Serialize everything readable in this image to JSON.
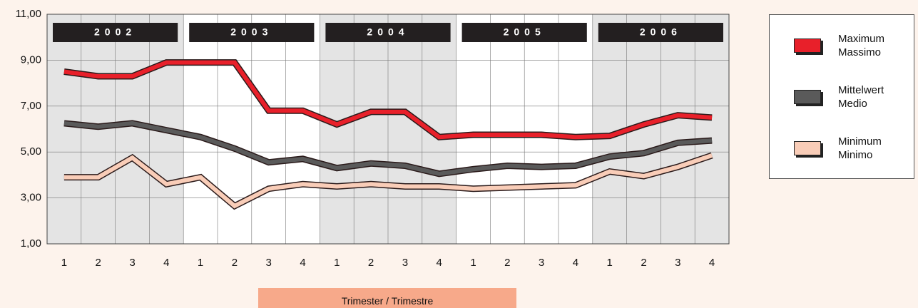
{
  "chart_data": {
    "type": "line",
    "groups": [
      "2002",
      "2003",
      "2004",
      "2005",
      "2006"
    ],
    "categories": [
      "1",
      "2",
      "3",
      "4",
      "1",
      "2",
      "3",
      "4",
      "1",
      "2",
      "3",
      "4",
      "1",
      "2",
      "3",
      "4",
      "1",
      "2",
      "3",
      "4"
    ],
    "series": [
      {
        "name": "Maximum Massimo",
        "color": "#e8202a",
        "values": [
          8.5,
          8.3,
          8.3,
          8.9,
          8.9,
          8.9,
          6.8,
          6.8,
          6.2,
          6.75,
          6.75,
          5.65,
          5.75,
          5.75,
          5.75,
          5.65,
          5.7,
          6.2,
          6.6,
          6.5
        ]
      },
      {
        "name": "Mittelwert Medio",
        "color": "#5a5a5a",
        "values": [
          6.25,
          6.1,
          6.25,
          5.95,
          5.65,
          5.15,
          4.55,
          4.7,
          4.3,
          4.5,
          4.4,
          4.05,
          4.25,
          4.4,
          4.35,
          4.4,
          4.8,
          4.95,
          5.4,
          5.5
        ]
      },
      {
        "name": "Minimum Minimo",
        "color": "#f9cdb8",
        "values": [
          3.9,
          3.9,
          4.75,
          3.6,
          3.9,
          2.65,
          3.4,
          3.6,
          3.5,
          3.6,
          3.5,
          3.5,
          3.4,
          3.45,
          3.5,
          3.55,
          4.15,
          3.95,
          4.35,
          4.85
        ]
      }
    ],
    "ylim": [
      1,
      11
    ],
    "yticks": [
      {
        "value": 1,
        "label": "1,00"
      },
      {
        "value": 3,
        "label": "3,00"
      },
      {
        "value": 5,
        "label": "5,00"
      },
      {
        "value": 7,
        "label": "7,00"
      },
      {
        "value": 9,
        "label": "9,00"
      },
      {
        "value": 11,
        "label": "11,00"
      }
    ],
    "xlabel": "Trimester / Trimestre",
    "grid": true
  }
}
